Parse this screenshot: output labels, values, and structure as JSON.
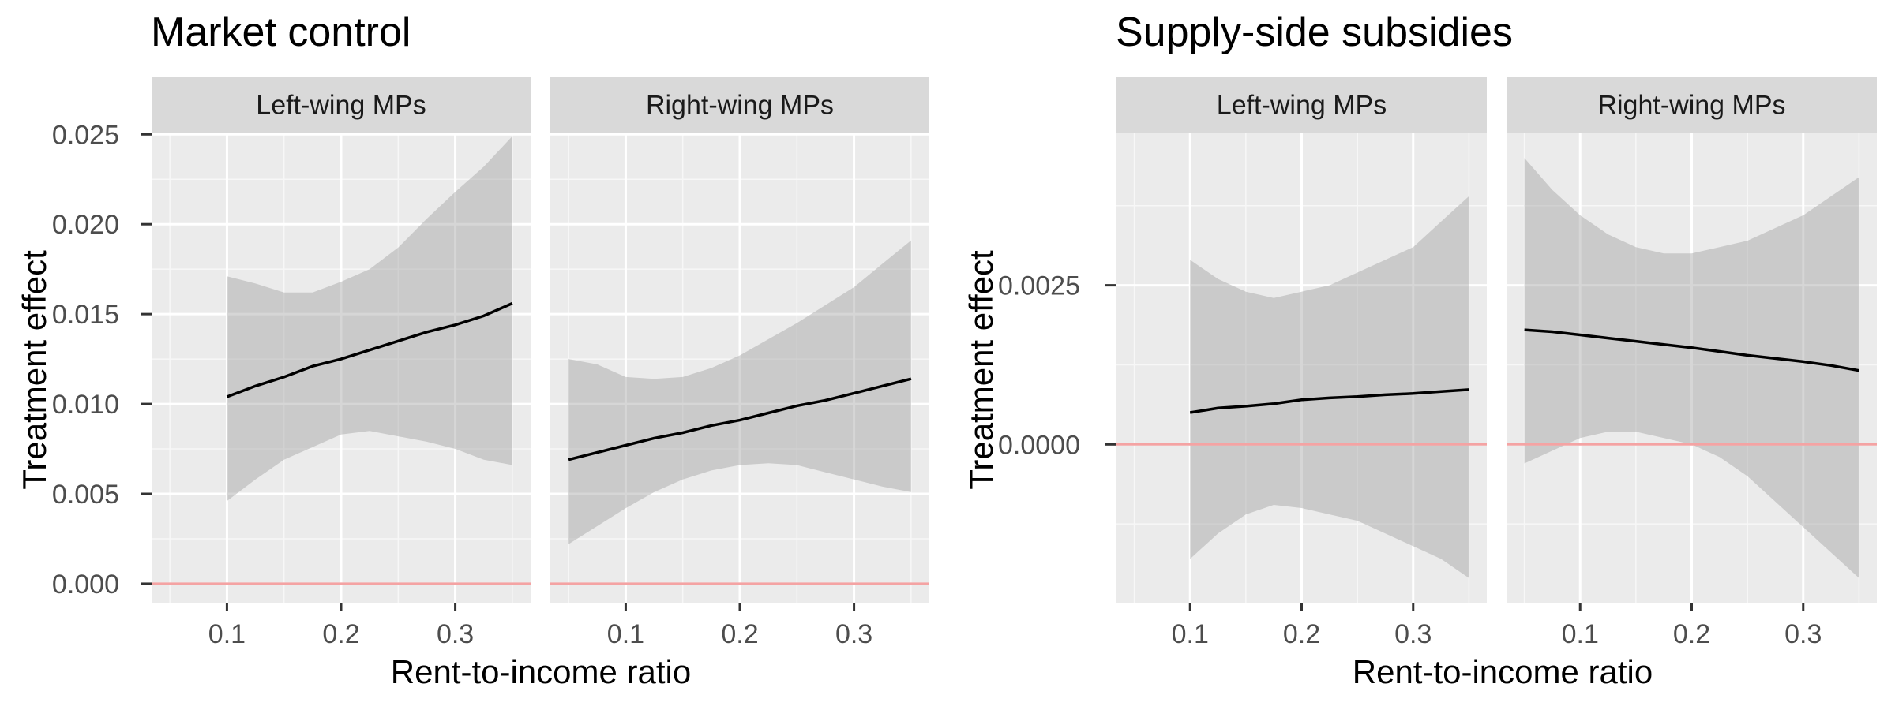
{
  "chart_data": [
    {
      "type": "line",
      "title": "Market control",
      "xlabel": "Rent-to-income ratio",
      "ylabel": "Treatment effect",
      "reference_line": {
        "y": 0,
        "color": "#f4a3a3"
      },
      "grid": true,
      "facets": [
        {
          "strip": "Left-wing MPs",
          "x": [
            0.1,
            0.125,
            0.15,
            0.175,
            0.2,
            0.225,
            0.25,
            0.275,
            0.3,
            0.325,
            0.35
          ],
          "y": [
            0.0104,
            0.011,
            0.0115,
            0.0121,
            0.0125,
            0.013,
            0.0135,
            0.014,
            0.0144,
            0.0149,
            0.0156
          ],
          "lower": [
            0.0046,
            0.0058,
            0.0069,
            0.0076,
            0.0083,
            0.0085,
            0.0082,
            0.0079,
            0.0075,
            0.0069,
            0.0066
          ],
          "upper": [
            0.0171,
            0.0167,
            0.0162,
            0.0162,
            0.0168,
            0.0175,
            0.0187,
            0.0203,
            0.0218,
            0.0232,
            0.0249
          ]
        },
        {
          "strip": "Right-wing MPs",
          "x": [
            0.05,
            0.075,
            0.1,
            0.125,
            0.15,
            0.175,
            0.2,
            0.225,
            0.25,
            0.275,
            0.3,
            0.325,
            0.35
          ],
          "y": [
            0.0069,
            0.0073,
            0.0077,
            0.0081,
            0.0084,
            0.0088,
            0.0091,
            0.0095,
            0.0099,
            0.0102,
            0.0106,
            0.011,
            0.0114
          ],
          "lower": [
            0.0022,
            0.0032,
            0.0042,
            0.0051,
            0.0058,
            0.0063,
            0.0066,
            0.0067,
            0.0066,
            0.0062,
            0.0058,
            0.0054,
            0.0051
          ],
          "upper": [
            0.0125,
            0.0122,
            0.0115,
            0.0114,
            0.0115,
            0.012,
            0.0127,
            0.0136,
            0.0145,
            0.0155,
            0.0165,
            0.0178,
            0.0191
          ]
        }
      ],
      "x_ticks": [
        0.1,
        0.2,
        0.3
      ],
      "x_tick_labels": [
        "0.1",
        "0.2",
        "0.3"
      ],
      "xlim": [
        0.034,
        0.366
      ],
      "y_ticks": [
        0.0,
        0.005,
        0.01,
        0.015,
        0.02,
        0.025
      ],
      "y_tick_labels": [
        "0.000",
        "0.005",
        "0.010",
        "0.015",
        "0.020",
        "0.025"
      ],
      "ylim": [
        -0.0011,
        0.0251
      ]
    },
    {
      "type": "line",
      "title": "Supply-side subsidies",
      "xlabel": "Rent-to-income ratio",
      "ylabel": "Treatment effect",
      "reference_line": {
        "y": 0,
        "color": "#f4a3a3"
      },
      "grid": true,
      "facets": [
        {
          "strip": "Left-wing MPs",
          "x": [
            0.1,
            0.125,
            0.15,
            0.175,
            0.2,
            0.225,
            0.25,
            0.275,
            0.3,
            0.325,
            0.35
          ],
          "y": [
            0.0005,
            0.00057,
            0.0006,
            0.00064,
            0.0007,
            0.00073,
            0.00075,
            0.00078,
            0.0008,
            0.00083,
            0.00086
          ],
          "lower": [
            -0.0018,
            -0.0014,
            -0.0011,
            -0.00095,
            -0.001,
            -0.0011,
            -0.0012,
            -0.0014,
            -0.0016,
            -0.0018,
            -0.0021
          ],
          "upper": [
            0.0029,
            0.0026,
            0.0024,
            0.0023,
            0.0024,
            0.0025,
            0.0027,
            0.0029,
            0.0031,
            0.0035,
            0.0039
          ]
        },
        {
          "strip": "Right-wing MPs",
          "x": [
            0.05,
            0.075,
            0.1,
            0.125,
            0.15,
            0.175,
            0.2,
            0.225,
            0.25,
            0.275,
            0.3,
            0.325,
            0.35
          ],
          "y": [
            0.0018,
            0.00177,
            0.00172,
            0.00167,
            0.00162,
            0.00157,
            0.00152,
            0.00146,
            0.0014,
            0.00135,
            0.0013,
            0.00124,
            0.00116
          ],
          "lower": [
            -0.0003,
            -0.0001,
            0.0001,
            0.0002,
            0.0002,
            0.0001,
            0.0,
            -0.0002,
            -0.0005,
            -0.0009,
            -0.0013,
            -0.0017,
            -0.0021
          ],
          "upper": [
            0.0045,
            0.004,
            0.0036,
            0.0033,
            0.0031,
            0.003,
            0.003,
            0.0031,
            0.0032,
            0.0034,
            0.0036,
            0.0039,
            0.0042
          ]
        }
      ],
      "x_ticks": [
        0.1,
        0.2,
        0.3
      ],
      "x_tick_labels": [
        "0.1",
        "0.2",
        "0.3"
      ],
      "xlim": [
        0.034,
        0.366
      ],
      "y_ticks": [
        0.0,
        0.0025
      ],
      "y_tick_labels": [
        "0.0000",
        "0.0025"
      ],
      "ylim": [
        -0.0025,
        0.0049
      ]
    }
  ]
}
